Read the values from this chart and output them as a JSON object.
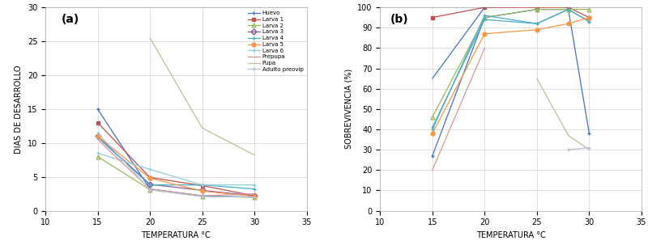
{
  "temp_a": [
    15,
    20,
    25,
    30
  ],
  "series_a": {
    "Huevo": [
      15.0,
      3.2,
      2.2,
      2.0
    ],
    "Larva 1": [
      13.0,
      4.9,
      3.7,
      2.2
    ],
    "Larva 2": [
      8.0,
      3.1,
      2.1,
      2.0
    ],
    "Larva 3": [
      11.0,
      3.9,
      3.0,
      2.2
    ],
    "Larva 4": [
      10.8,
      3.8,
      3.8,
      3.2
    ],
    "Larva 5": [
      11.0,
      4.8,
      2.9,
      2.1
    ],
    "Larva 6": [
      8.5,
      6.1,
      3.8,
      3.8
    ],
    "Prepupa": [
      10.5,
      3.2,
      2.2,
      2.5
    ],
    "Pupa": [
      null,
      25.5,
      12.2,
      8.2
    ],
    "Adulto preovip": [
      11.5,
      3.1,
      2.1,
      2.0
    ]
  },
  "colors_a": {
    "Huevo": "#4472C4",
    "Larva 1": "#C0504D",
    "Larva 2": "#9BBB59",
    "Larva 3": "#7F5C99",
    "Larva 4": "#4BACC6",
    "Larva 5": "#F79646",
    "Larva 6": "#92CDDC",
    "Prepupa": "#D99694",
    "Pupa": "#C4BD97",
    "Adulto preovip": "#B7C1D8"
  },
  "markers_a": {
    "Huevo": "+",
    "Larva 1": "s",
    "Larva 2": "^",
    "Larva 3": "D",
    "Larva 4": "+",
    "Larva 5": "o",
    "Larva 6": "+",
    "Prepupa": "None",
    "Pupa": "None",
    "Adulto preovip": "+"
  },
  "temp_b": [
    15,
    20,
    25,
    28,
    30
  ],
  "series_b": {
    "Huevo": [
      27.0,
      95.0,
      99.0,
      99.0,
      38.0
    ],
    "Larva 1": [
      95.0,
      100.0,
      100.0,
      100.0,
      95.0
    ],
    "Larva 2": [
      46.0,
      95.0,
      99.0,
      99.0,
      99.0
    ],
    "Larva 3": [
      40.0,
      96.0,
      92.0,
      99.0,
      93.0
    ],
    "Larva 4": [
      41.0,
      94.0,
      92.0,
      99.0,
      93.0
    ],
    "Larva 5": [
      38.0,
      87.0,
      89.0,
      92.0,
      95.0
    ],
    "Larva 6": [
      65.0,
      100.0,
      null,
      null,
      null
    ],
    "Prepupa": [
      20.0,
      80.0,
      null,
      null,
      null
    ],
    "Pupa": [
      null,
      null,
      65.0,
      37.0,
      30.0
    ],
    "Adulto preovip": [
      null,
      null,
      null,
      30.0,
      31.0
    ]
  },
  "colors_b": {
    "Huevo": "#4472C4",
    "Larva 1": "#C0504D",
    "Larva 2": "#9BBB59",
    "Larva 3": "#4BACC6",
    "Larva 4": "#4BACC6",
    "Larva 5": "#F79646",
    "Larva 6": "#4472C4",
    "Prepupa": "#D99694",
    "Pupa": "#C4BD97",
    "Adulto preovip": "#B7C1D8"
  },
  "markers_b": {
    "Huevo": "+",
    "Larva 1": "s",
    "Larva 2": "^",
    "Larva 3": "+",
    "Larva 4": "+",
    "Larva 5": "o",
    "Larva 6": "None",
    "Prepupa": "None",
    "Pupa": "None",
    "Adulto preovip": "+"
  },
  "xlim": [
    10,
    35
  ],
  "ylim_a": [
    0,
    30
  ],
  "ylim_b": [
    0,
    100
  ],
  "xlabel": "TEMPERATURA °C",
  "ylabel_a": "DIAS DE DESARROLLO",
  "ylabel_b": "SOBREVIVENCIA (%)",
  "label_a": "(a)",
  "label_b": "(b)",
  "bg_color": "#FFFFFF",
  "ax_bg_color": "#FFFFFF",
  "grid_color": "#D9D9D9",
  "yticks_a": [
    0,
    5,
    10,
    15,
    20,
    25,
    30
  ],
  "yticks_b": [
    0,
    10,
    20,
    30,
    40,
    50,
    60,
    70,
    80,
    90,
    100
  ],
  "xticks": [
    10,
    15,
    20,
    25,
    30,
    35
  ],
  "legend_names": [
    "Huevo",
    "Larva 1",
    "Larva 2",
    "Larva 3",
    "Larva 4",
    "Larva 5",
    "Larva 6",
    "Prepupa",
    "Pupa",
    "Adulto preovip"
  ]
}
